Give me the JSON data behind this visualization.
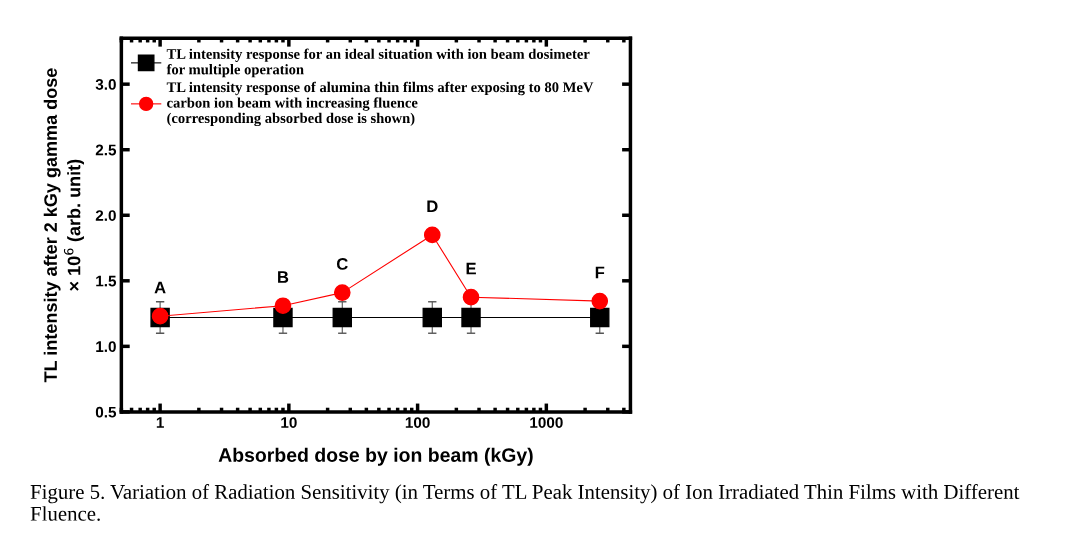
{
  "chart_data": {
    "type": "line",
    "xlabel": "Absorbed dose by ion beam (kGy)",
    "ylabel": "TL intensity after 2 kGy gamma dose\n× 10$^{6}$ (arb. unit)",
    "log": "x",
    "xlim": [
      0.5,
      4500
    ],
    "xticks": [
      1,
      10,
      100,
      1000
    ],
    "ylim": [
      0.5,
      3.35
    ],
    "yticks": [
      0.5,
      {
        "value": 1,
        "label": "1.0"
      },
      1.5,
      {
        "value": 2,
        "label": "2.0"
      },
      2.5,
      {
        "value": 3,
        "label": "3.0"
      }
    ],
    "grid": false,
    "legend": "top left",
    "line_style": "solid",
    "series": [
      {
        "name": "TL intensity response for an ideal situation with ion beam dosimeter\nfor multiple operation",
        "color": "#000000",
        "marker": "square",
        "x": [
          1,
          9,
          26,
          130,
          260,
          2600
        ],
        "values": [
          1.22,
          1.22,
          1.22,
          1.22,
          1.22,
          1.22
        ],
        "errors": [
          0.12,
          0.12,
          0.12,
          0.12,
          0.12,
          0.12
        ]
      },
      {
        "name": "TL intensity response of alumina thin films after exposing to 80 MeV\ncarbon ion beam with increasing fluence\n(corresponding absorbed dose is shown)",
        "color": "#ff0000",
        "marker": "circle",
        "x": [
          1,
          9,
          26,
          130,
          260,
          2600
        ],
        "values": [
          1.23,
          1.31,
          1.41,
          1.85,
          1.375,
          1.345
        ]
      }
    ],
    "annotations": [
      {
        "text": "A",
        "x": 1,
        "y": 1.23
      },
      {
        "text": "B",
        "x": 9,
        "y": 1.31
      },
      {
        "text": "C",
        "x": 26,
        "y": 1.41
      },
      {
        "text": "D",
        "x": 130,
        "y": 1.85
      },
      {
        "text": "E",
        "x": 260,
        "y": 1.375
      },
      {
        "text": "F",
        "x": 2600,
        "y": 1.345
      },
      "Figure 5. Variation of Radiation Sensitivity (in Terms of TL Peak Intensity) of Ion Irradiated Thin Films with Different Fluence."
    ]
  }
}
